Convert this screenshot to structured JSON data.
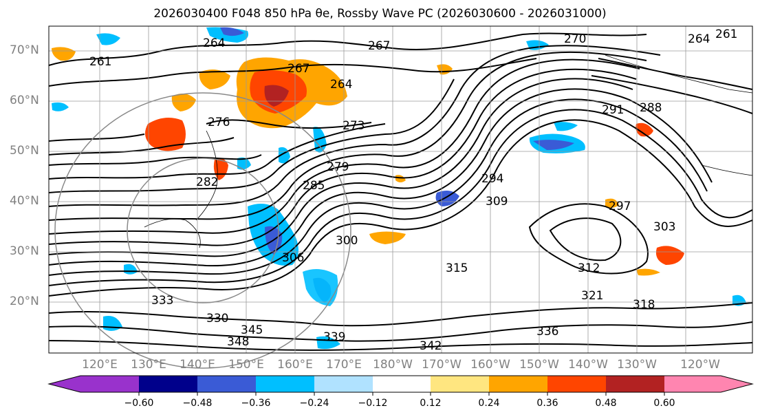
{
  "title": "2026030400 F048 850 hPa θe, Rossby Wave PC (2026030600 - 2026031000)",
  "map": {
    "lat_labels": [
      "70°N",
      "60°N",
      "50°N",
      "40°N",
      "30°N",
      "20°N"
    ],
    "lon_labels": [
      "120°E",
      "130°E",
      "140°E",
      "150°E",
      "160°E",
      "170°E",
      "180°W",
      "170°W",
      "160°W",
      "150°W",
      "140°W",
      "130°W",
      "120°W"
    ],
    "contour_labels": [
      "264",
      "267",
      "270",
      "261",
      "264",
      "267",
      "264",
      "261",
      "276",
      "273",
      "279",
      "282",
      "285",
      "288",
      "291",
      "294",
      "297",
      "300",
      "303",
      "306",
      "309",
      "312",
      "315",
      "318",
      "321",
      "330",
      "333",
      "336",
      "339",
      "342",
      "345",
      "348"
    ]
  },
  "colorbar": {
    "ticks": [
      "−0.60",
      "−0.48",
      "−0.36",
      "−0.24",
      "−0.12",
      "0.12",
      "0.24",
      "0.36",
      "0.48",
      "0.60"
    ],
    "colors": [
      "#9932cc",
      "#00008b",
      "#3a5bd6",
      "#00bfff",
      "#b0e2ff",
      "#ffffff",
      "#ffe680",
      "#ffa500",
      "#ff4500",
      "#b22222",
      "#ff85b0"
    ]
  }
}
